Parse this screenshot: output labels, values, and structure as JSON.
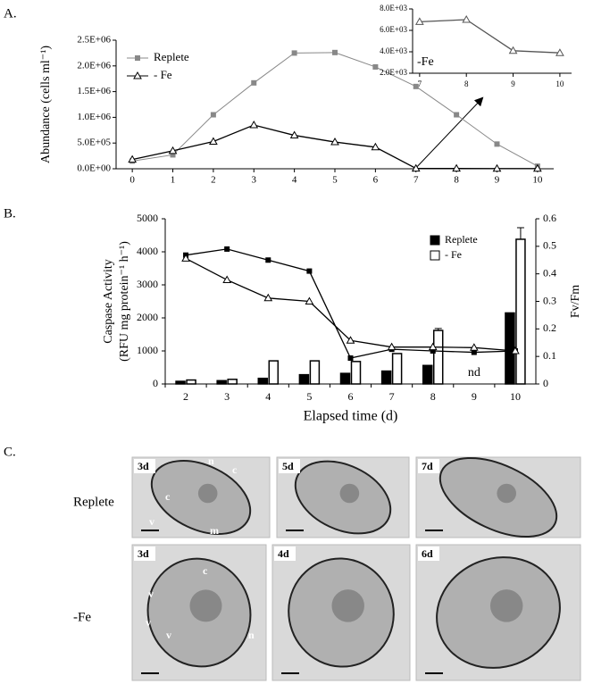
{
  "panel_labels": [
    "A.",
    "B.",
    "C."
  ],
  "chart_data": [
    {
      "type": "line",
      "ylabel": "Abundance (cells ml⁻¹)",
      "x": [
        0,
        1,
        2,
        3,
        4,
        5,
        6,
        7,
        8,
        9,
        10
      ],
      "xlim": [
        -0.4,
        10.4
      ],
      "xticks": [
        0,
        1,
        2,
        3,
        4,
        5,
        6,
        7,
        8,
        9,
        10
      ],
      "ylim": [
        0,
        2500000
      ],
      "yticks": [
        {
          "value": 0,
          "label": "0.0E+00"
        },
        {
          "value": 500000,
          "label": "5.0E+05"
        },
        {
          "value": 1000000,
          "label": "1.0E+06"
        },
        {
          "value": 1500000,
          "label": "1.5E+06"
        },
        {
          "value": 2000000,
          "label": "2.0E+06"
        },
        {
          "value": 2500000,
          "label": "2.5E+06"
        }
      ],
      "legend": "top-left",
      "series": [
        {
          "name": "Replete",
          "color": "#888888",
          "marker": "square",
          "values": [
            150000,
            270000,
            1050000,
            1670000,
            2250000,
            2260000,
            1980000,
            1600000,
            1050000,
            480000,
            50000
          ]
        },
        {
          "name": "- Fe",
          "color": "#000000",
          "marker": "triangle",
          "values": [
            180000,
            350000,
            530000,
            850000,
            650000,
            520000,
            420000,
            7000,
            7000,
            4000,
            4000
          ]
        }
      ]
    },
    {
      "type": "line",
      "annotation": "-Fe",
      "x": [
        7,
        8,
        9,
        10
      ],
      "xlim": [
        6.85,
        10.25
      ],
      "xticks": [
        7,
        8,
        9,
        10
      ],
      "ylim": [
        2000,
        8000
      ],
      "yticks": [
        {
          "value": 2000,
          "label": "2.0E+03"
        },
        {
          "value": 4000,
          "label": "4.0E+03"
        },
        {
          "value": 6000,
          "label": "6.0E+03"
        },
        {
          "value": 8000,
          "label": "8.0E+03"
        }
      ],
      "series": [
        {
          "color": "#555555",
          "marker": "triangle",
          "values": [
            6800,
            7000,
            4100,
            3900
          ]
        }
      ]
    },
    {
      "type": "bar",
      "ylabel": [
        "Caspase Activity",
        "(RFU mg protein⁻¹ h⁻¹)"
      ],
      "y2label": "Fv/Fm",
      "xlabel": "Elapsed time (d)",
      "annotation": "nd",
      "categories": [
        "2",
        "3",
        "4",
        "5",
        "6",
        "7",
        "8",
        "9",
        "10"
      ],
      "ylim": [
        0,
        5000
      ],
      "yticks": [
        0,
        1000,
        2000,
        3000,
        4000,
        5000
      ],
      "y2lim": [
        0,
        0.6
      ],
      "y2ticks": [
        0,
        0.1,
        0.2,
        0.3,
        0.4,
        0.5,
        0.6
      ],
      "legend": "top-right",
      "series": [
        {
          "name": "Replete",
          "color": "#000000",
          "values": [
            80,
            100,
            170,
            280,
            320,
            390,
            560,
            null,
            2150
          ]
        },
        {
          "name": "- Fe",
          "color": "#ffffff",
          "values": [
            120,
            140,
            700,
            700,
            680,
            920,
            1620,
            null,
            4380
          ],
          "errors": [
            null,
            null,
            null,
            null,
            null,
            null,
            60,
            null,
            350
          ]
        },
        {
          "type": "line",
          "axis": "y2",
          "color": "#000000",
          "marker": "square",
          "values": [
            0.468,
            0.49,
            0.45,
            0.41,
            0.094,
            0.126,
            0.12,
            0.115,
            0.12
          ]
        },
        {
          "type": "line",
          "axis": "y2",
          "color": "#000000",
          "marker": "triangle",
          "values": [
            0.456,
            0.378,
            0.312,
            0.3,
            0.158,
            0.134,
            0.134,
            0.132,
            0.12
          ]
        }
      ]
    }
  ],
  "panel_c": {
    "rows": [
      {
        "label": "Replete",
        "images": [
          {
            "day": "3d",
            "annotations": [
              "c",
              "n",
              "c",
              "v",
              "m"
            ]
          },
          {
            "day": "5d",
            "annotations": []
          },
          {
            "day": "7d",
            "annotations": []
          }
        ]
      },
      {
        "label": "-Fe",
        "images": [
          {
            "day": "3d",
            "annotations": [
              "c",
              "n",
              "v",
              "v",
              "v"
            ]
          },
          {
            "day": "4d",
            "annotations": []
          },
          {
            "day": "6d",
            "annotations": []
          }
        ]
      }
    ]
  }
}
